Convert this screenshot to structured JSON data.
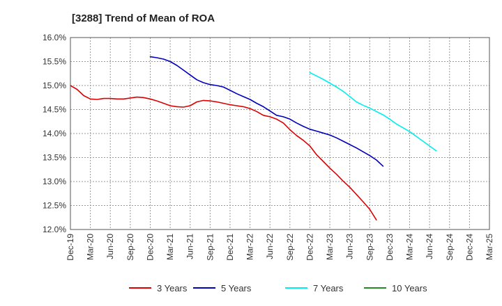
{
  "chart_data": {
    "type": "line",
    "title": "[3288]  Trend of Mean of ROA",
    "xlabel": "",
    "ylabel": "",
    "ylim": [
      12.0,
      16.0
    ],
    "y_ticks": [
      "12.0%",
      "12.5%",
      "13.0%",
      "13.5%",
      "14.0%",
      "14.5%",
      "15.0%",
      "15.5%",
      "16.0%"
    ],
    "x_tick_labels": [
      "Dec-19",
      "Mar-20",
      "Jun-20",
      "Sep-20",
      "Dec-20",
      "Mar-21",
      "Jun-21",
      "Sep-21",
      "Dec-21",
      "Mar-22",
      "Jun-22",
      "Sep-22",
      "Dec-22",
      "Mar-23",
      "Jun-23",
      "Sep-23",
      "Dec-23",
      "Mar-24",
      "Jun-24",
      "Sep-24",
      "Dec-24",
      "Mar-25"
    ],
    "grid": true,
    "legend_position": "bottom",
    "series": [
      {
        "name": "3 Years",
        "color": "#dd0000",
        "start_index": 0,
        "values": [
          15.0,
          14.92,
          14.79,
          14.72,
          14.71,
          14.73,
          14.73,
          14.72,
          14.72,
          14.74,
          14.76,
          14.75,
          14.72,
          14.68,
          14.63,
          14.58,
          14.56,
          14.55,
          14.58,
          14.66,
          14.69,
          14.68,
          14.66,
          14.63,
          14.6,
          14.58,
          14.56,
          14.52,
          14.46,
          14.38,
          14.35,
          14.3,
          14.22,
          14.08,
          13.96,
          13.86,
          13.74,
          13.56,
          13.42,
          13.28,
          13.15,
          13.01,
          12.88,
          12.73,
          12.58,
          12.42,
          12.2
        ]
      },
      {
        "name": "5 Years",
        "color": "#0000bb",
        "start_index": 12,
        "values": [
          15.6,
          15.58,
          15.55,
          15.5,
          15.42,
          15.32,
          15.22,
          15.12,
          15.06,
          15.02,
          15.0,
          14.97,
          14.9,
          14.83,
          14.77,
          14.71,
          14.63,
          14.56,
          14.47,
          14.38,
          14.35,
          14.3,
          14.22,
          14.15,
          14.09,
          14.05,
          14.01,
          13.97,
          13.91,
          13.84,
          13.77,
          13.7,
          13.62,
          13.54,
          13.45,
          13.32
        ]
      },
      {
        "name": "7 Years",
        "color": "#00eeee",
        "start_index": 36,
        "values": [
          15.27,
          15.2,
          15.13,
          15.05,
          14.97,
          14.88,
          14.77,
          14.66,
          14.59,
          14.53,
          14.46,
          14.39,
          14.3,
          14.2,
          14.12,
          14.04,
          13.94,
          13.84,
          13.74,
          13.64
        ]
      },
      {
        "name": "10 Years",
        "color": "#228b22",
        "start_index": 0,
        "values": []
      }
    ]
  }
}
